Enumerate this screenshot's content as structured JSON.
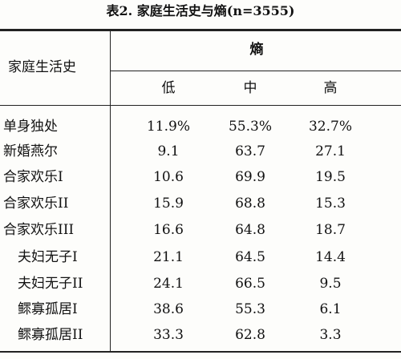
{
  "title": "表2. 家庭生活史与熵(n=3555)",
  "table": {
    "header": {
      "row_label": "家庭生活史",
      "group": "熵",
      "columns": [
        "低",
        "中",
        "高"
      ]
    },
    "rows": [
      [
        "单身独处",
        "11.9%",
        "55.3%",
        "32.7%"
      ],
      [
        "新婚燕尔",
        "9.1",
        "63.7",
        "27.1"
      ],
      [
        "合家欢乐I",
        "10.6",
        "69.9",
        "19.5"
      ],
      [
        "合家欢乐II",
        "15.9",
        "68.8",
        "15.3"
      ],
      [
        "合家欢乐III",
        "16.6",
        "64.8",
        "18.7"
      ],
      [
        "夫妇无子I",
        "21.1",
        "64.5",
        "14.4"
      ],
      [
        "夫妇无子II",
        "24.1",
        "66.5",
        "9.5"
      ],
      [
        "鳏寡孤居I",
        "38.6",
        "55.3",
        "6.1"
      ],
      [
        "鳏寡孤居II",
        "33.3",
        "62.8",
        "3.3"
      ]
    ]
  }
}
